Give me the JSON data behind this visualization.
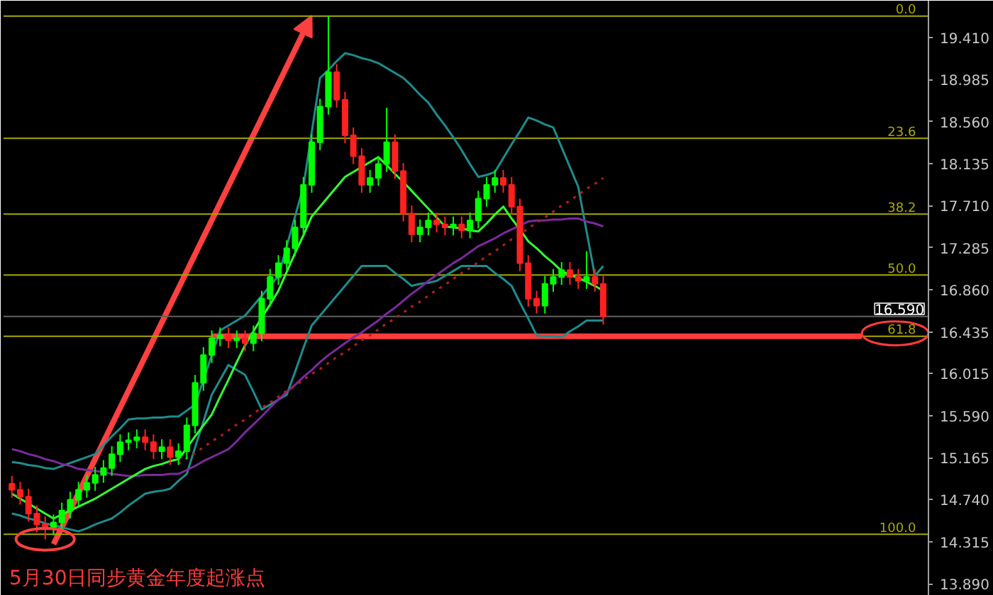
{
  "chart_data": {
    "type": "candlestick",
    "categories": [
      null,
      null,
      null,
      null,
      null,
      null,
      null,
      null,
      null,
      null,
      null,
      null,
      null,
      null,
      null,
      null,
      null,
      null,
      null,
      null,
      null,
      null,
      null,
      null,
      null,
      null,
      null,
      null,
      null,
      null,
      null,
      null,
      null,
      null,
      null,
      null,
      null,
      null,
      null,
      null,
      null,
      null,
      null,
      null,
      null,
      null,
      null,
      null,
      null,
      null,
      null,
      null,
      null,
      null,
      null,
      null,
      null,
      null,
      null,
      null,
      null,
      null,
      null,
      null,
      null,
      null,
      null,
      null,
      null,
      null,
      null,
      null
    ],
    "ohlc": [
      [
        14.9,
        14.98,
        14.76,
        14.84
      ],
      [
        14.84,
        14.92,
        14.69,
        14.77
      ],
      [
        14.77,
        14.85,
        14.52,
        14.6
      ],
      [
        14.6,
        14.68,
        14.41,
        14.49
      ],
      [
        14.49,
        14.57,
        14.34,
        14.46
      ],
      [
        14.46,
        14.59,
        14.38,
        14.51
      ],
      [
        14.51,
        14.71,
        14.43,
        14.63
      ],
      [
        14.63,
        14.82,
        14.55,
        14.74
      ],
      [
        14.74,
        14.92,
        14.66,
        14.84
      ],
      [
        14.84,
        14.99,
        14.76,
        14.91
      ],
      [
        14.91,
        15.07,
        14.83,
        14.99
      ],
      [
        14.99,
        15.14,
        14.91,
        15.06
      ],
      [
        15.06,
        15.28,
        14.98,
        15.2
      ],
      [
        15.2,
        15.4,
        15.12,
        15.32
      ],
      [
        15.32,
        15.42,
        15.24,
        15.34
      ],
      [
        15.34,
        15.45,
        15.26,
        15.37
      ],
      [
        15.37,
        15.45,
        15.24,
        15.32
      ],
      [
        15.32,
        15.4,
        15.15,
        15.23
      ],
      [
        15.23,
        15.35,
        15.15,
        15.27
      ],
      [
        15.27,
        15.35,
        15.09,
        15.17
      ],
      [
        15.17,
        15.31,
        15.09,
        15.23
      ],
      [
        15.23,
        15.57,
        15.15,
        15.49
      ],
      [
        15.49,
        16.0,
        15.41,
        15.92
      ],
      [
        15.92,
        16.28,
        15.84,
        16.2
      ],
      [
        16.2,
        16.45,
        16.12,
        16.37
      ],
      [
        16.37,
        16.48,
        16.29,
        16.4
      ],
      [
        16.4,
        16.48,
        16.27,
        16.35
      ],
      [
        16.35,
        16.45,
        16.27,
        16.37
      ],
      [
        16.37,
        16.45,
        16.24,
        16.32
      ],
      [
        16.32,
        16.5,
        16.24,
        16.42
      ],
      [
        16.42,
        16.85,
        16.34,
        16.77
      ],
      [
        16.77,
        17.07,
        16.69,
        16.99
      ],
      [
        16.99,
        17.21,
        16.91,
        17.13
      ],
      [
        17.13,
        17.36,
        17.05,
        17.28
      ],
      [
        17.28,
        17.57,
        17.2,
        17.49
      ],
      [
        17.49,
        18.0,
        17.41,
        17.92
      ],
      [
        17.92,
        18.43,
        17.84,
        18.35
      ],
      [
        18.35,
        18.79,
        18.27,
        18.71
      ],
      [
        18.71,
        19.63,
        18.63,
        19.06
      ],
      [
        19.06,
        19.14,
        18.7,
        18.78
      ],
      [
        18.78,
        18.86,
        18.34,
        18.42
      ],
      [
        18.42,
        18.5,
        18.13,
        18.21
      ],
      [
        18.21,
        18.29,
        17.84,
        17.92
      ],
      [
        17.92,
        18.07,
        17.84,
        17.99
      ],
      [
        17.99,
        18.21,
        17.91,
        18.13
      ],
      [
        18.13,
        18.7,
        18.05,
        18.35
      ],
      [
        18.35,
        18.43,
        17.98,
        18.06
      ],
      [
        18.06,
        18.14,
        17.55,
        17.63
      ],
      [
        17.63,
        17.71,
        17.34,
        17.42
      ],
      [
        17.42,
        17.57,
        17.34,
        17.49
      ],
      [
        17.49,
        17.64,
        17.41,
        17.56
      ],
      [
        17.56,
        17.64,
        17.44,
        17.52
      ],
      [
        17.52,
        17.6,
        17.41,
        17.49
      ],
      [
        17.49,
        17.6,
        17.41,
        17.52
      ],
      [
        17.52,
        17.6,
        17.38,
        17.46
      ],
      [
        17.46,
        17.64,
        17.38,
        17.56
      ],
      [
        17.56,
        17.86,
        17.48,
        17.78
      ],
      [
        17.78,
        18.0,
        17.7,
        17.92
      ],
      [
        17.92,
        18.07,
        17.84,
        17.99
      ],
      [
        17.99,
        18.07,
        17.84,
        17.92
      ],
      [
        17.92,
        18.0,
        17.62,
        17.7
      ],
      [
        17.7,
        17.78,
        17.05,
        17.13
      ],
      [
        17.13,
        17.21,
        16.69,
        16.77
      ],
      [
        16.77,
        16.85,
        16.62,
        16.7
      ],
      [
        16.7,
        17.0,
        16.62,
        16.92
      ],
      [
        16.92,
        17.07,
        16.84,
        16.99
      ],
      [
        16.99,
        17.14,
        16.91,
        17.06
      ],
      [
        17.06,
        17.14,
        16.91,
        16.99
      ],
      [
        16.99,
        17.07,
        16.87,
        16.95
      ],
      [
        16.95,
        17.25,
        16.87,
        16.99
      ],
      [
        16.99,
        17.07,
        16.84,
        16.92
      ],
      [
        16.92,
        17.0,
        16.51,
        16.59
      ]
    ],
    "series": [
      {
        "type": "line",
        "color": "#1e8c8c",
        "values": [
          15.12,
          15.11,
          15.09,
          15.08,
          15.06,
          15.05,
          15.08,
          15.11,
          15.14,
          15.17,
          15.2,
          15.29,
          15.38,
          15.46,
          15.55,
          15.56,
          15.56,
          15.57,
          15.57,
          15.58,
          15.58,
          15.64,
          15.7,
          15.95,
          16.2,
          16.45,
          16.5,
          16.55,
          16.6,
          16.7,
          16.8,
          16.9,
          17.0,
          17.3,
          17.6,
          17.9,
          18.45,
          19.0,
          19.08,
          19.17,
          19.25,
          19.23,
          19.2,
          19.18,
          19.15,
          19.1,
          19.05,
          19.0,
          18.92,
          18.83,
          18.75,
          18.63,
          18.52,
          18.4,
          18.27,
          18.13,
          18.0,
          18.02,
          18.05,
          18.19,
          18.33,
          18.46,
          18.6,
          18.57,
          18.53,
          18.5,
          18.3,
          18.1,
          17.9,
          17.45,
          17.0,
          17.1
        ]
      },
      {
        "type": "line",
        "color": "#1e8c8c",
        "values": [
          14.6,
          14.58,
          14.55,
          14.53,
          14.5,
          14.48,
          14.46,
          14.44,
          14.42,
          14.45,
          14.49,
          14.52,
          14.55,
          14.61,
          14.68,
          14.74,
          14.8,
          14.82,
          14.83,
          14.85,
          14.93,
          15.0,
          15.27,
          15.53,
          15.8,
          15.95,
          16.1,
          16.05,
          16.0,
          15.83,
          15.65,
          15.7,
          15.75,
          15.8,
          16.03,
          16.27,
          16.5,
          16.6,
          16.7,
          16.8,
          16.9,
          17.0,
          17.1,
          17.1,
          17.1,
          17.1,
          17.03,
          16.97,
          16.9,
          16.92,
          16.93,
          16.95,
          17.0,
          17.05,
          17.1,
          17.1,
          17.1,
          17.1,
          17.03,
          16.97,
          16.9,
          16.73,
          16.57,
          16.4,
          16.39,
          16.39,
          16.38,
          16.44,
          16.49,
          16.55,
          16.55,
          16.55
        ]
      },
      {
        "type": "line",
        "color": "#7b2a9b",
        "values": [
          15.25,
          15.23,
          15.2,
          15.18,
          15.15,
          15.13,
          15.1,
          15.08,
          15.05,
          15.04,
          15.03,
          15.02,
          15.0,
          14.99,
          14.98,
          14.98,
          14.99,
          14.99,
          14.99,
          15.0,
          15.0,
          15.04,
          15.08,
          15.13,
          15.17,
          15.21,
          15.25,
          15.33,
          15.42,
          15.5,
          15.58,
          15.67,
          15.75,
          15.83,
          15.9,
          15.98,
          16.05,
          16.13,
          16.2,
          16.26,
          16.32,
          16.38,
          16.43,
          16.49,
          16.55,
          16.62,
          16.68,
          16.75,
          16.82,
          16.88,
          16.95,
          17.01,
          17.07,
          17.13,
          17.18,
          17.24,
          17.3,
          17.34,
          17.38,
          17.43,
          17.47,
          17.51,
          17.55,
          17.56,
          17.56,
          17.57,
          17.57,
          17.58,
          17.58,
          17.55,
          17.53,
          17.5
        ]
      },
      {
        "type": "line",
        "color": "#b02020",
        "line_style": "dotted",
        "values": [
          null,
          null,
          null,
          null,
          null,
          null,
          null,
          null,
          null,
          null,
          null,
          null,
          null,
          null,
          null,
          null,
          null,
          null,
          null,
          null,
          15.1,
          15.16,
          15.21,
          15.27,
          15.33,
          15.38,
          15.44,
          15.5,
          15.55,
          15.61,
          15.67,
          15.72,
          15.78,
          15.84,
          15.89,
          15.95,
          16.01,
          16.06,
          16.12,
          16.18,
          16.23,
          16.29,
          16.35,
          16.4,
          16.46,
          16.52,
          16.57,
          16.63,
          16.69,
          16.74,
          16.8,
          16.86,
          16.91,
          16.97,
          17.03,
          17.08,
          17.14,
          17.2,
          17.25,
          17.31,
          17.37,
          17.42,
          17.48,
          17.54,
          17.59,
          17.65,
          17.71,
          17.76,
          17.82,
          17.88,
          17.93,
          17.99
        ]
      },
      {
        "type": "line",
        "color": "#33ff33",
        "values": [
          14.8,
          14.75,
          14.7,
          14.65,
          14.6,
          14.55,
          14.59,
          14.63,
          14.67,
          14.71,
          14.75,
          14.8,
          14.85,
          14.9,
          14.95,
          15.0,
          15.05,
          15.08,
          15.1,
          15.13,
          15.15,
          15.26,
          15.38,
          15.49,
          15.6,
          15.78,
          15.95,
          16.13,
          16.3,
          16.44,
          16.58,
          16.71,
          16.85,
          17.04,
          17.23,
          17.41,
          17.6,
          17.7,
          17.8,
          17.9,
          18.0,
          18.05,
          18.1,
          18.15,
          18.2,
          18.12,
          18.03,
          17.95,
          17.86,
          17.77,
          17.68,
          17.59,
          17.5,
          17.49,
          17.48,
          17.46,
          17.45,
          17.53,
          17.62,
          17.7,
          17.58,
          17.47,
          17.35,
          17.28,
          17.2,
          17.13,
          17.05,
          17.01,
          16.98,
          16.94,
          16.9,
          16.85
        ]
      }
    ],
    "ylim": [
      13.77,
      19.78
    ],
    "yticks": [
      {
        "value": 19.41,
        "label": "19.410"
      },
      {
        "value": 18.985,
        "label": "18.985"
      },
      {
        "value": 18.56,
        "label": "18.560"
      },
      {
        "value": 18.135,
        "label": "18.135"
      },
      {
        "value": 17.71,
        "label": "17.710"
      },
      {
        "value": 17.285,
        "label": "17.285"
      },
      {
        "value": 16.86,
        "label": "16.860"
      },
      {
        "value": 16.435,
        "label": "16.435"
      },
      {
        "value": 16.015,
        "label": "16.015"
      },
      {
        "value": 15.59,
        "label": "15.590"
      },
      {
        "value": 15.165,
        "label": "15.165"
      },
      {
        "value": 14.74,
        "label": "14.740"
      },
      {
        "value": 14.315,
        "label": "14.315"
      },
      {
        "value": 13.89,
        "label": "13.890"
      }
    ],
    "tick_labels": "y",
    "grid": false,
    "ref_lines": [
      {
        "axis": "y",
        "value": 19.625,
        "color": "#a8a800"
      },
      {
        "axis": "y",
        "value": 18.39,
        "color": "#a8a800"
      },
      {
        "axis": "y",
        "value": 17.625,
        "color": "#a8a800"
      },
      {
        "axis": "y",
        "value": 17.01,
        "color": "#a8a800"
      },
      {
        "axis": "y",
        "value": 16.39,
        "color": "#a8a800"
      },
      {
        "axis": "y",
        "value": 14.39,
        "color": "#a8a800"
      },
      {
        "axis": "y",
        "value": 16.59,
        "label": "16.590",
        "color": "#606060"
      },
      {
        "axis": "y",
        "value": 16.39,
        "color": "#ff3b3b"
      }
    ],
    "annotations": [
      "5月30日同步黄金年度起涨点",
      {
        "text": "0.0",
        "y": 19.625
      },
      {
        "text": "23.6",
        "y": 18.39
      },
      {
        "text": "38.2",
        "y": 17.625
      },
      {
        "text": "50.0",
        "y": 17.01
      },
      {
        "text": "61.8",
        "y": 16.39
      },
      {
        "text": "100.0",
        "y": 14.39
      }
    ]
  }
}
